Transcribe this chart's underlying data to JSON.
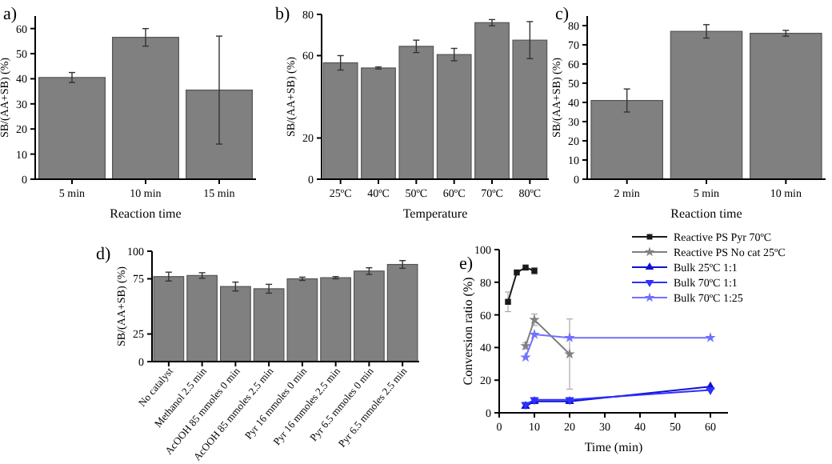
{
  "chart_data": [
    {
      "type": "bar",
      "title": "a)",
      "categories": [
        "5 min",
        "10 min",
        "15 min"
      ],
      "values": [
        40.5,
        56.5,
        35.5
      ],
      "errors": [
        2,
        3.5,
        21.5
      ],
      "color": "#808080",
      "xlabel": "Reaction time",
      "ylabel": "SB/(AA+SB) (%)",
      "ylim": [
        0,
        65
      ],
      "yticks": [
        0,
        10,
        20,
        30,
        40,
        50,
        60
      ]
    },
    {
      "type": "bar",
      "title": "b)",
      "categories": [
        "25ºC",
        "40ºC",
        "50ºC",
        "60ºC",
        "70ºC",
        "80ºC"
      ],
      "values": [
        56.5,
        54,
        64.5,
        60.5,
        76,
        67.5
      ],
      "errors": [
        3.5,
        0.5,
        3,
        3,
        1.5,
        9
      ],
      "color": "#808080",
      "xlabel": "Temperature",
      "ylabel": "SB/(AA+SB) (%)",
      "ylim": [
        0,
        80
      ],
      "yticks": [
        0,
        20,
        60,
        80
      ]
    },
    {
      "type": "bar",
      "title": "c)",
      "categories": [
        "2 min",
        "5 min",
        "10 min"
      ],
      "values": [
        41,
        77,
        76
      ],
      "errors": [
        6,
        3.5,
        1.5
      ],
      "color": "#808080",
      "xlabel": "Reaction time",
      "ylabel": "SB/(AA+SB) (%)",
      "ylim": [
        0,
        85
      ],
      "yticks": [
        0,
        10,
        20,
        30,
        40,
        50,
        60,
        70,
        80
      ]
    },
    {
      "type": "bar",
      "title": "d)",
      "categories": [
        "No catalyst",
        "Methanol 2.5 min",
        "AcOOH 85 mmoles 0 min",
        "AcOOH 85 mmoles 2.5 min",
        "Pyr 16 mmoles 0 min",
        "Pyr 16 mmoles 2.5 min",
        "Pyr 6.5 mmoles 0 min",
        "Pyr 6.5 mmoles 2.5 min"
      ],
      "values": [
        77,
        78,
        68,
        66,
        75,
        76,
        82,
        88
      ],
      "errors": [
        4,
        2.5,
        4,
        4,
        1.5,
        1,
        3,
        3.5
      ],
      "color": "#808080",
      "ylabel": "SB/(AA+SB) (%)",
      "ylim": [
        0,
        100
      ],
      "yticks": [
        0,
        25,
        75,
        100
      ]
    },
    {
      "type": "line",
      "title": "e)",
      "xlabel": "Time (min)",
      "ylabel": "Conversion ratio (%)",
      "xlim": [
        0,
        65
      ],
      "xticks": [
        0,
        10,
        20,
        30,
        40,
        50,
        60
      ],
      "ylim": [
        0,
        100
      ],
      "yticks": [
        0,
        20,
        40,
        60,
        80,
        100
      ],
      "legend": "top right",
      "series": [
        {
          "name": "Reactive PS Pyr 70ºC",
          "color": "#1a1a1a",
          "marker": "square",
          "x": [
            2.5,
            5,
            7.5,
            10
          ],
          "values": [
            68,
            86,
            89,
            87
          ],
          "errors": [
            6,
            null,
            null,
            2
          ]
        },
        {
          "name": "Reactive PS No cat 25ºC",
          "color": "#808080",
          "marker": "star",
          "x": [
            7.5,
            10,
            20
          ],
          "values": [
            41,
            57,
            36
          ],
          "errors": [
            2,
            3.5,
            21.5
          ]
        },
        {
          "name": "Bulk 25ºC 1:1",
          "color": "#1010d0",
          "marker": "triangle",
          "x": [
            7.5,
            10,
            20,
            60
          ],
          "values": [
            4,
            7,
            7,
            16
          ]
        },
        {
          "name": "Bulk 70ºC 1:1",
          "color": "#2f2fff",
          "marker": "triangle-down",
          "x": [
            7.5,
            10,
            20,
            60
          ],
          "values": [
            5,
            8,
            8,
            14
          ]
        },
        {
          "name": "Bulk 70ºC 1:25",
          "color": "#7070ff",
          "marker": "star",
          "x": [
            7.5,
            10,
            20,
            60
          ],
          "values": [
            34,
            48,
            46,
            46
          ]
        }
      ]
    }
  ]
}
